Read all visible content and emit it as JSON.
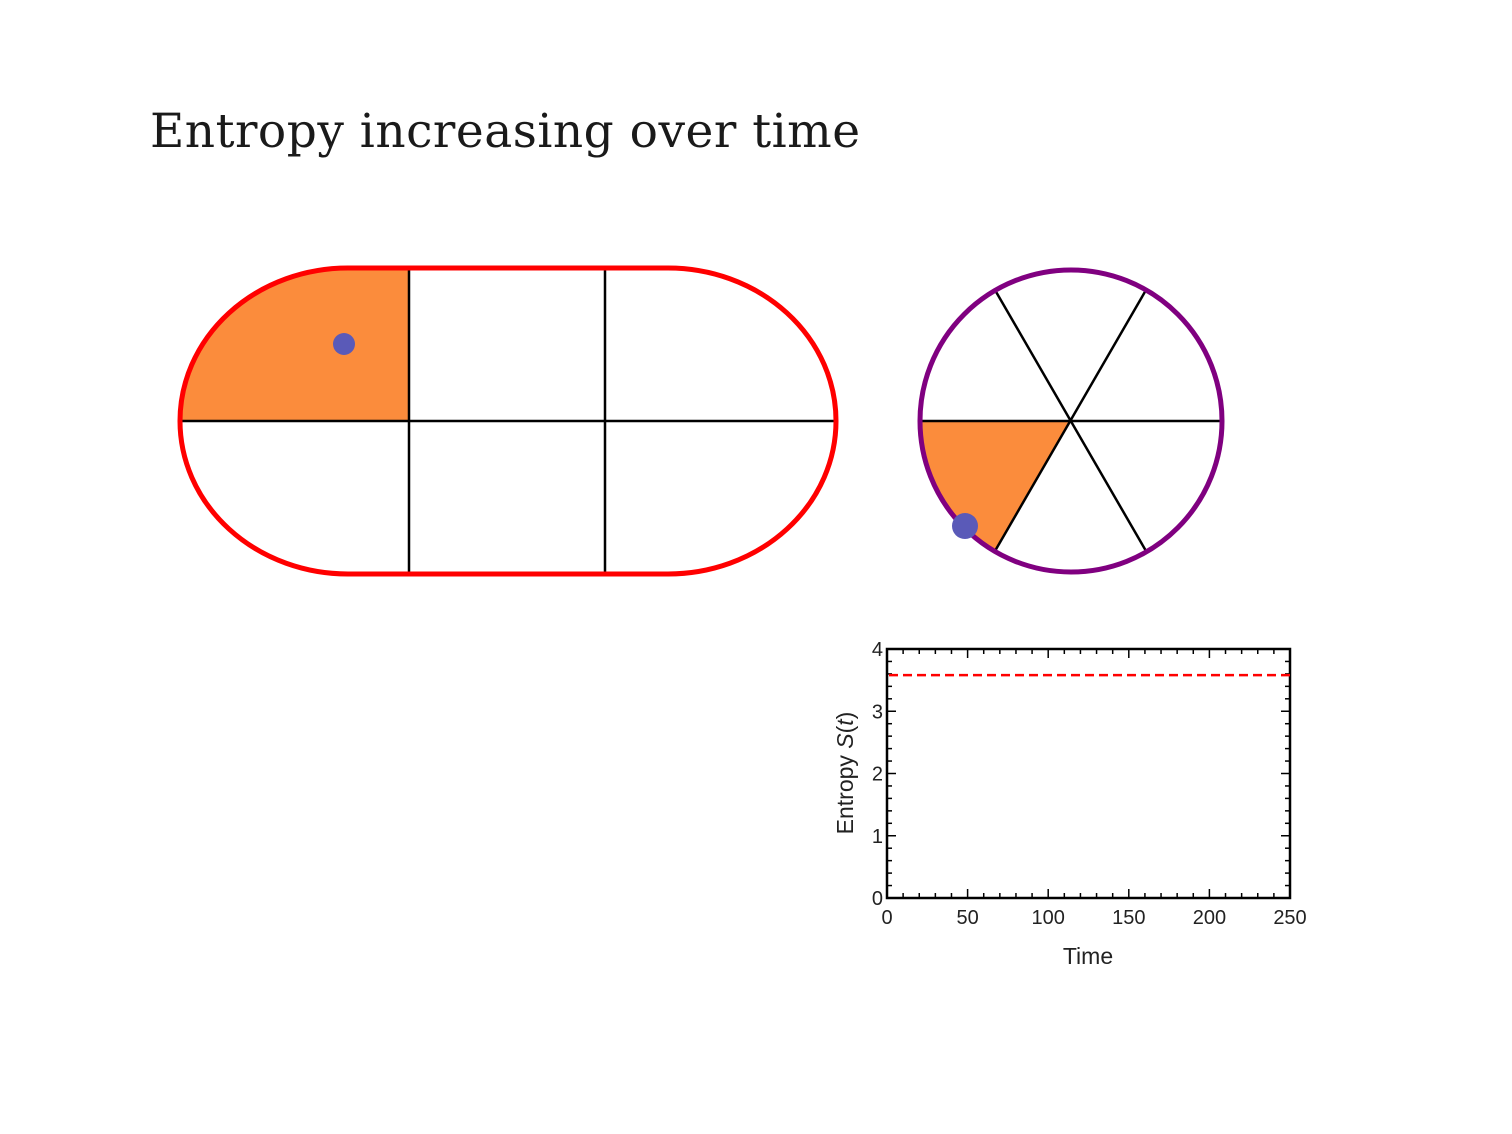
{
  "slide": {
    "title": "Entropy increasing over time"
  },
  "colors": {
    "stadium_border": "#ff0000",
    "circle_border": "#800080",
    "occupied_cell": "#fb8c3c",
    "particle": "#5a5ab8",
    "grid_lines": "#000000",
    "max_entropy_line": "#ff0000"
  },
  "stadium_billiard": {
    "columns": 3,
    "rows": 2,
    "occupied_cell": "top-left"
  },
  "circle_billiard": {
    "sectors": 6,
    "occupied_sector": "lower-left"
  },
  "chart_data": {
    "type": "line",
    "xlabel": "Time",
    "ylabel_prefix": "Entropy ",
    "ylabel_symbol": "S",
    "ylabel_arg": "t",
    "xlim": [
      0,
      250
    ],
    "ylim": [
      0,
      4
    ],
    "xticks": [
      "0",
      "50",
      "100",
      "150",
      "200",
      "250"
    ],
    "yticks": [
      "0",
      "1",
      "2",
      "3",
      "4"
    ],
    "reference_line": {
      "style": "dashed",
      "y": 3.58
    },
    "series": []
  }
}
